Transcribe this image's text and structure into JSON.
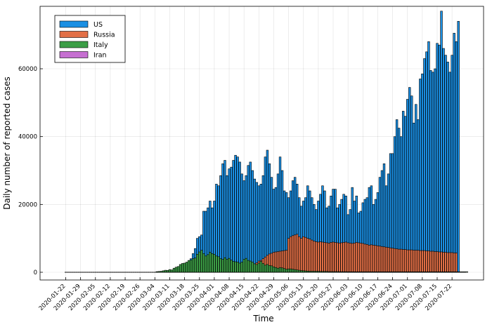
{
  "chart_data": {
    "type": "bar",
    "title": "",
    "xlabel": "Time",
    "ylabel": "Daily number of reported cases",
    "ylim": [
      0,
      78000
    ],
    "yticks": [
      0,
      20000,
      40000,
      60000
    ],
    "grid": true,
    "legend_position": "top-left",
    "bar_mode": "overlay",
    "x_start": "2020-01-22",
    "x_tick_labels": [
      "2020-01-22",
      "2020-01-29",
      "2020-02-05",
      "2020-02-12",
      "2020-02-19",
      "2020-02-26",
      "2020-03-04",
      "2020-03-11",
      "2020-03-18",
      "2020-03-25",
      "2020-04-01",
      "2020-04-08",
      "2020-04-15",
      "2020-04-22",
      "2020-04-29",
      "2020-05-06",
      "2020-05-13",
      "2020-05-20",
      "2020-05-27",
      "2020-06-03",
      "2020-06-10",
      "2020-06-17",
      "2020-06-24",
      "2020-07-01",
      "2020-07-08",
      "2020-07-15",
      "2020-07-22"
    ],
    "series": [
      {
        "name": "US",
        "color": "#1a8fe3",
        "values": [
          0,
          0,
          0,
          0,
          0,
          0,
          0,
          0,
          0,
          0,
          0,
          0,
          0,
          0,
          0,
          0,
          0,
          0,
          0,
          0,
          0,
          0,
          0,
          0,
          0,
          0,
          0,
          0,
          0,
          0,
          0,
          0,
          0,
          0,
          0,
          0,
          0,
          0,
          0,
          0,
          0,
          0,
          0,
          0,
          0,
          0,
          0,
          60,
          100,
          150,
          200,
          300,
          400,
          600,
          700,
          1000,
          1300,
          2000,
          2500,
          4000,
          5500,
          7000,
          10000,
          10500,
          11000,
          18000,
          18000,
          19000,
          21000,
          19000,
          21000,
          26000,
          25500,
          28500,
          32000,
          33000,
          28500,
          30500,
          31000,
          33000,
          34500,
          34000,
          32500,
          29000,
          27000,
          28500,
          31500,
          32500,
          30000,
          27500,
          26500,
          25500,
          26000,
          28500,
          34000,
          36000,
          32000,
          28000,
          24500,
          25000,
          29000,
          34000,
          30000,
          24000,
          23500,
          22000,
          24000,
          27000,
          28000,
          26000,
          22000,
          19500,
          21000,
          22000,
          25500,
          24000,
          22000,
          20000,
          18500,
          21000,
          23000,
          25500,
          24000,
          19000,
          19500,
          22500,
          24500,
          24500,
          19000,
          20000,
          21500,
          23000,
          22500,
          17000,
          18500,
          25000,
          21000,
          22500,
          17500,
          18000,
          20500,
          21500,
          22000,
          25000,
          25500,
          20000,
          21500,
          23500,
          28000,
          30000,
          32000,
          25500,
          29000,
          35000,
          35000,
          40000,
          45000,
          42500,
          40000,
          47500,
          46000,
          51000,
          54500,
          52000,
          44000,
          49500,
          45000,
          57000,
          58500,
          63000,
          65000,
          68000,
          59500,
          59000,
          60000,
          67500,
          67000,
          77000,
          66000,
          64000,
          62000,
          59000,
          64000,
          70500,
          68000,
          74000
        ]
      },
      {
        "name": "Russia",
        "color": "#e26f46",
        "values": [
          0,
          0,
          0,
          0,
          0,
          0,
          0,
          0,
          0,
          0,
          0,
          0,
          0,
          0,
          0,
          0,
          0,
          0,
          0,
          0,
          0,
          0,
          0,
          0,
          0,
          0,
          0,
          0,
          0,
          0,
          0,
          0,
          0,
          0,
          0,
          0,
          0,
          0,
          0,
          0,
          0,
          0,
          0,
          0,
          0,
          0,
          0,
          0,
          0,
          0,
          0,
          0,
          0,
          0,
          0,
          0,
          0,
          0,
          0,
          0,
          0,
          0,
          0,
          0,
          0,
          0,
          0,
          0,
          0,
          0,
          0,
          0,
          0,
          0,
          0,
          0,
          0,
          0,
          0,
          0,
          0,
          0,
          0,
          0,
          1000,
          1200,
          1600,
          1800,
          2100,
          2500,
          2800,
          3300,
          3500,
          4000,
          4500,
          5000,
          5400,
          5600,
          5900,
          6000,
          6100,
          6200,
          6300,
          6400,
          6500,
          10000,
          10500,
          10800,
          11000,
          11200,
          10500,
          10000,
          10500,
          10300,
          10000,
          9800,
          9500,
          9200,
          9000,
          8900,
          9000,
          8900,
          8800,
          8700,
          8600,
          8800,
          8900,
          8800,
          8700,
          8600,
          8700,
          8800,
          8900,
          8700,
          8600,
          8500,
          8600,
          8800,
          8700,
          8600,
          8500,
          8300,
          8200,
          8000,
          8100,
          8000,
          7900,
          7800,
          7700,
          7600,
          7500,
          7400,
          7300,
          7200,
          7100,
          7000,
          6900,
          6800,
          6800,
          6700,
          6700,
          6600,
          6600,
          6600,
          6500,
          6500,
          6500,
          6400,
          6400,
          6400,
          6300,
          6300,
          6200,
          6200,
          6100,
          6100,
          6000,
          6000,
          5900,
          5900,
          5800,
          5800,
          5800,
          5700,
          5700
        ]
      },
      {
        "name": "Italy",
        "color": "#3c9e46",
        "values": [
          0,
          0,
          0,
          0,
          0,
          0,
          0,
          0,
          0,
          0,
          0,
          0,
          0,
          0,
          0,
          0,
          0,
          0,
          0,
          0,
          0,
          0,
          0,
          0,
          0,
          0,
          0,
          0,
          0,
          0,
          0,
          0,
          0,
          0,
          0,
          0,
          0,
          0,
          0,
          0,
          0,
          0,
          0,
          200,
          250,
          300,
          450,
          600,
          550,
          800,
          700,
          1200,
          1500,
          1700,
          2300,
          2600,
          2700,
          3000,
          3500,
          3600,
          4000,
          4200,
          5300,
          6000,
          6500,
          5500,
          4800,
          5200,
          5900,
          5500,
          5300,
          4800,
          4600,
          4000,
          3800,
          4300,
          3800,
          4100,
          3600,
          3200,
          3100,
          3000,
          2700,
          3000,
          3800,
          4100,
          3500,
          3300,
          3000,
          2500,
          2300,
          2700,
          3200,
          2600,
          2100,
          2300,
          2000,
          1900,
          1600,
          1400,
          1200,
          1400,
          1300,
          1100,
          900,
          1000,
          1000,
          900,
          800,
          700,
          600,
          500,
          450,
          400,
          350,
          300,
          300,
          300,
          300,
          300,
          250,
          250,
          250,
          250,
          200,
          200,
          200,
          200,
          200,
          180,
          180,
          180,
          180,
          160,
          160,
          160,
          160,
          150,
          150,
          150,
          150,
          150,
          150,
          150,
          150,
          150,
          150,
          150,
          150,
          150,
          150,
          150,
          150,
          150,
          150,
          150,
          150,
          150,
          150,
          150,
          150,
          150,
          150,
          150,
          150,
          150,
          150,
          150,
          150,
          150,
          150,
          150,
          150,
          150,
          150,
          150,
          150,
          150,
          150,
          150,
          150,
          150,
          150,
          150,
          150,
          150,
          150,
          150,
          150,
          150
        ]
      },
      {
        "name": "Iran",
        "color": "#c66fd1",
        "values": [
          0,
          0,
          0,
          0,
          0,
          0,
          0,
          0,
          0,
          0,
          0,
          0,
          0,
          0,
          0,
          0,
          0,
          0,
          0,
          0,
          0,
          0,
          0,
          0,
          0,
          0,
          0,
          0,
          0,
          0,
          0,
          0,
          0,
          0,
          0,
          0,
          0,
          0,
          0,
          0,
          0,
          0,
          0,
          0,
          0,
          0,
          0,
          0,
          0,
          0,
          0,
          0,
          0,
          0,
          0,
          0,
          0,
          0,
          0,
          0,
          0,
          0,
          0,
          0,
          0,
          0,
          0,
          0,
          0,
          0,
          0,
          0,
          0,
          0,
          0,
          0,
          0,
          0,
          0,
          0,
          0,
          0,
          0,
          0,
          0,
          0,
          0,
          0,
          0,
          0,
          0,
          0,
          0,
          0,
          0,
          0,
          0,
          0,
          0,
          0,
          0,
          0,
          0,
          0,
          0,
          0,
          0,
          0,
          0,
          0,
          0,
          0,
          0,
          0,
          0,
          0,
          0,
          0,
          0,
          0,
          0,
          0,
          0,
          0,
          0,
          0,
          0,
          0,
          0,
          0,
          0,
          0,
          0,
          0,
          0,
          0,
          0,
          0,
          0,
          0,
          0,
          0,
          0,
          0,
          0,
          0,
          0,
          0,
          0,
          0,
          0,
          0,
          0,
          0,
          0,
          0,
          0,
          0,
          0,
          0,
          0,
          0,
          0,
          0,
          0,
          0,
          0,
          0,
          0,
          0,
          0,
          0,
          0,
          0,
          0,
          0,
          0,
          0,
          0,
          0,
          0,
          0,
          0,
          0,
          0,
          0,
          0,
          0,
          0
        ]
      }
    ]
  }
}
